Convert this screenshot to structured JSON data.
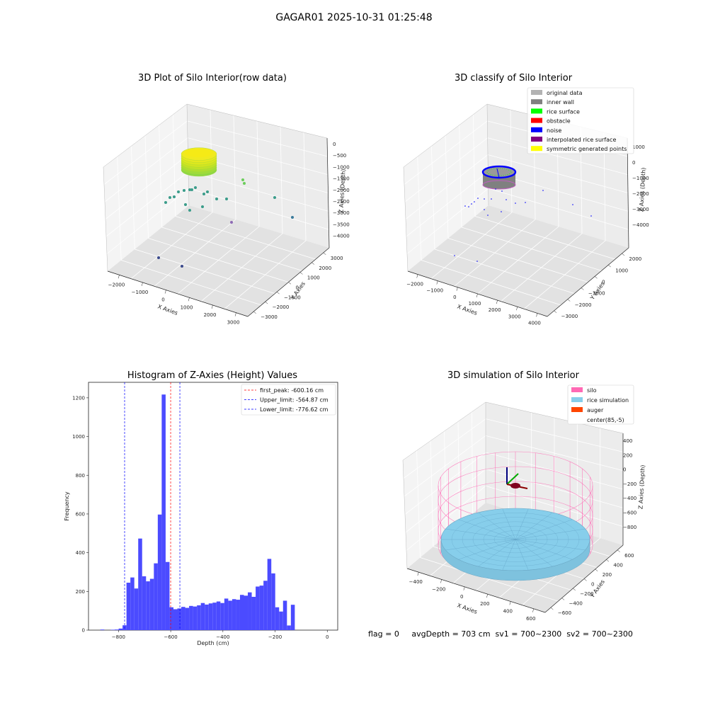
{
  "figure_title": "GAGAR01 2025-10-31 01:25:48",
  "status_line": "flag = 0     avgDepth = 703 cm  sv1 = 700~2300  sv2 = 700~2300",
  "chart_data": [
    {
      "type": "scatter",
      "title": "3D Plot of Silo Interior(row data)",
      "xlabel": "X Axies",
      "ylabel": "Y Axies",
      "zlabel": "Z Axies (Depth)",
      "x_ticks": [
        "−2000",
        "−1000",
        "0",
        "1000",
        "2000",
        "3000"
      ],
      "y_ticks": [
        "−3000",
        "−2000",
        "−1000",
        "0",
        "1000",
        "2000",
        "3000"
      ],
      "z_ticks": [
        "0",
        "−500",
        "−1000",
        "−1500",
        "−2000",
        "−2500",
        "−3000",
        "−3500",
        "−4000"
      ],
      "colors": {
        "near_surface": "#c6e52a",
        "mid": "#3a9c8a",
        "low": "#3b4a8c"
      }
    },
    {
      "type": "scatter",
      "title": "3D classify of Silo Interior",
      "xlabel": "X Axies",
      "ylabel": "Y Axies",
      "zlabel": "Z Axies (Depth)",
      "x_ticks": [
        "−2000",
        "−1000",
        "0",
        "1000",
        "2000",
        "3000",
        "4000"
      ],
      "y_ticks": [
        "−3000",
        "−2000",
        "−1000",
        "0",
        "1000",
        "2000"
      ],
      "z_ticks": [
        "1000",
        "0",
        "−1000",
        "−2000",
        "−3000",
        "−4000"
      ],
      "legend": [
        {
          "label": "original data",
          "color": "#b3b3b3"
        },
        {
          "label": "inner wall",
          "color": "#808080"
        },
        {
          "label": "rice surface",
          "color": "#00ff00"
        },
        {
          "label": "obstacle",
          "color": "#ff0000"
        },
        {
          "label": "noise",
          "color": "#0000ff"
        },
        {
          "label": "interpolated rice surface",
          "color": "#800080"
        },
        {
          "label": "symmetric generated points",
          "color": "#ffff00"
        }
      ]
    },
    {
      "type": "bar",
      "title": "Histogram of Z-Axies (Height) Values",
      "xlabel": "Depth (cm)",
      "ylabel": "Frequency",
      "xlim": [
        -915,
        40
      ],
      "ylim": [
        0,
        1280
      ],
      "x_ticks": [
        -800,
        -600,
        -400,
        -200,
        0
      ],
      "x_tick_labels": [
        "−800",
        "−600",
        "−400",
        "−200",
        "0"
      ],
      "y_ticks": [
        0,
        200,
        400,
        600,
        800,
        1000,
        1200
      ],
      "bin_width": 15,
      "bins": [
        {
          "x": -862,
          "value": 3
        },
        {
          "x": -822,
          "value": 2
        },
        {
          "x": -807,
          "value": 3
        },
        {
          "x": -792,
          "value": 8
        },
        {
          "x": -777,
          "value": 25
        },
        {
          "x": -762,
          "value": 245
        },
        {
          "x": -747,
          "value": 272
        },
        {
          "x": -732,
          "value": 215
        },
        {
          "x": -717,
          "value": 473
        },
        {
          "x": -702,
          "value": 278
        },
        {
          "x": -687,
          "value": 252
        },
        {
          "x": -672,
          "value": 265
        },
        {
          "x": -657,
          "value": 345
        },
        {
          "x": -642,
          "value": 597
        },
        {
          "x": -627,
          "value": 1217
        },
        {
          "x": -612,
          "value": 352
        },
        {
          "x": -597,
          "value": 118
        },
        {
          "x": -582,
          "value": 108
        },
        {
          "x": -567,
          "value": 112
        },
        {
          "x": -552,
          "value": 120
        },
        {
          "x": -537,
          "value": 115
        },
        {
          "x": -522,
          "value": 125
        },
        {
          "x": -507,
          "value": 122
        },
        {
          "x": -492,
          "value": 128
        },
        {
          "x": -477,
          "value": 140
        },
        {
          "x": -462,
          "value": 132
        },
        {
          "x": -447,
          "value": 138
        },
        {
          "x": -432,
          "value": 142
        },
        {
          "x": -417,
          "value": 148
        },
        {
          "x": -402,
          "value": 140
        },
        {
          "x": -387,
          "value": 163
        },
        {
          "x": -372,
          "value": 152
        },
        {
          "x": -357,
          "value": 160
        },
        {
          "x": -342,
          "value": 157
        },
        {
          "x": -327,
          "value": 182
        },
        {
          "x": -312,
          "value": 178
        },
        {
          "x": -297,
          "value": 195
        },
        {
          "x": -282,
          "value": 172
        },
        {
          "x": -267,
          "value": 225
        },
        {
          "x": -252,
          "value": 230
        },
        {
          "x": -237,
          "value": 255
        },
        {
          "x": -222,
          "value": 368
        },
        {
          "x": -207,
          "value": 293
        },
        {
          "x": -192,
          "value": 118
        },
        {
          "x": -177,
          "value": 96
        },
        {
          "x": -162,
          "value": 152
        },
        {
          "x": -147,
          "value": 24
        },
        {
          "x": -132,
          "value": 131
        }
      ],
      "lines": [
        {
          "label": "first_peak: -600.16 cm",
          "x": -600.16,
          "color": "#ff0000"
        },
        {
          "label": "Upper_limit: -564.87 cm",
          "x": -564.87,
          "color": "#0000ff"
        },
        {
          "label": "Lower_limit: -776.62 cm",
          "x": -776.62,
          "color": "#0000ff"
        }
      ],
      "bar_color": "#4b4bff"
    },
    {
      "type": "scatter",
      "title": "3D simulation of Silo Interior",
      "xlabel": "X Axies",
      "ylabel": "Y Axies",
      "zlabel": "Z Axies (Depth)",
      "x_ticks": [
        "−400",
        "−200",
        "0",
        "200",
        "400",
        "600"
      ],
      "y_ticks": [
        "−600",
        "−400",
        "−200",
        "0",
        "200",
        "400",
        "600"
      ],
      "z_ticks": [
        "400",
        "200",
        "0",
        "−200",
        "−400",
        "−600",
        "−800"
      ],
      "legend": [
        {
          "label": "silo",
          "color": "#ff69b4"
        },
        {
          "label": "rice simulation",
          "color": "#87ceeb"
        },
        {
          "label": "auger",
          "color": "#ff4500"
        },
        {
          "label": "center(85,-5)",
          "color": "none"
        }
      ]
    }
  ]
}
